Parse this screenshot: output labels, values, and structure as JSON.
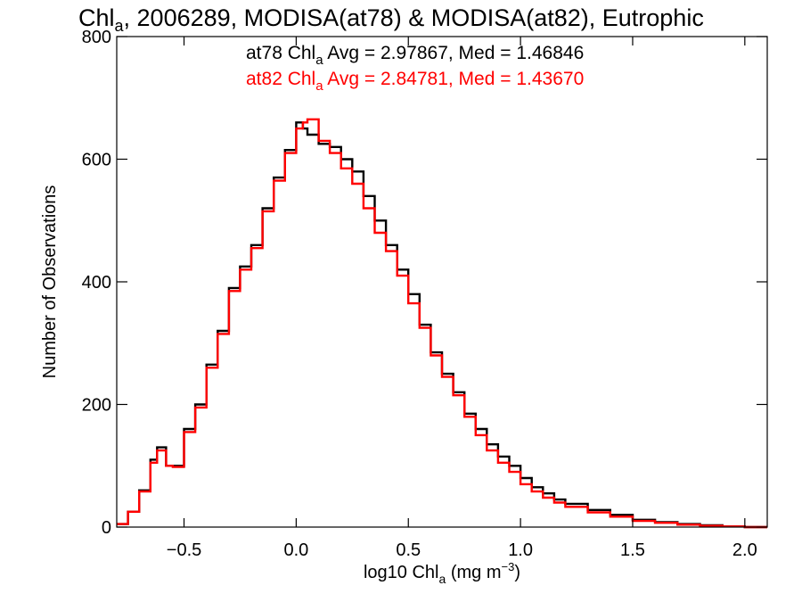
{
  "chart_data": {
    "type": "line",
    "title": {
      "prefix": "Chl",
      "sub": "a",
      "rest": ", 2006289, MODISA(at78) & MODISA(at82), Eutrophic"
    },
    "xlabel": {
      "prefix": "log10 Chl",
      "sub": "a",
      "mid": " (mg m",
      "sup": "−3",
      "suffix": ")"
    },
    "ylabel": "Number of Observations",
    "xlim": [
      -0.8,
      2.1
    ],
    "ylim": [
      0,
      800
    ],
    "xticks": [
      {
        "value": -0.5,
        "label": "−0.5"
      },
      {
        "value": 0.0,
        "label": "0.0"
      },
      {
        "value": 0.5,
        "label": "0.5"
      },
      {
        "value": 1.0,
        "label": "1.0"
      },
      {
        "value": 1.5,
        "label": "1.5"
      },
      {
        "value": 2.0,
        "label": "2.0"
      }
    ],
    "yticks": [
      {
        "value": 0,
        "label": "0"
      },
      {
        "value": 200,
        "label": "200"
      },
      {
        "value": 400,
        "label": "400"
      },
      {
        "value": 600,
        "label": "600"
      },
      {
        "value": 800,
        "label": "800"
      }
    ],
    "annotations": [
      {
        "prefix": "at78 Chl",
        "sub": "a",
        "rest": " Avg = 2.97867, Med = 1.46846",
        "color": "#000000"
      },
      {
        "prefix": "at82 Chl",
        "sub": "a",
        "rest": " Avg = 2.84781, Med = 1.43670",
        "color": "#ff0000"
      }
    ],
    "series": [
      {
        "color": "#000000",
        "x": [
          -0.8,
          -0.75,
          -0.7,
          -0.65,
          -0.62,
          -0.58,
          -0.55,
          -0.5,
          -0.45,
          -0.4,
          -0.35,
          -0.3,
          -0.25,
          -0.2,
          -0.15,
          -0.1,
          -0.05,
          0.0,
          0.03,
          0.05,
          0.1,
          0.15,
          0.2,
          0.25,
          0.3,
          0.35,
          0.4,
          0.45,
          0.5,
          0.55,
          0.6,
          0.65,
          0.7,
          0.75,
          0.8,
          0.85,
          0.9,
          0.95,
          1.0,
          1.05,
          1.1,
          1.15,
          1.2,
          1.3,
          1.4,
          1.5,
          1.6,
          1.7,
          1.8,
          1.9,
          2.0,
          2.1
        ],
        "y": [
          5,
          25,
          60,
          110,
          130,
          100,
          100,
          160,
          200,
          265,
          320,
          390,
          425,
          460,
          520,
          570,
          615,
          660,
          650,
          640,
          625,
          620,
          600,
          580,
          540,
          500,
          460,
          420,
          380,
          330,
          285,
          250,
          220,
          185,
          160,
          135,
          115,
          100,
          80,
          65,
          55,
          45,
          38,
          28,
          20,
          12,
          8,
          5,
          3,
          1,
          0,
          0
        ]
      },
      {
        "color": "#ff0000",
        "x": [
          -0.8,
          -0.75,
          -0.7,
          -0.65,
          -0.62,
          -0.58,
          -0.55,
          -0.5,
          -0.45,
          -0.4,
          -0.35,
          -0.3,
          -0.25,
          -0.2,
          -0.15,
          -0.1,
          -0.05,
          0.0,
          0.03,
          0.05,
          0.1,
          0.15,
          0.2,
          0.25,
          0.3,
          0.35,
          0.4,
          0.45,
          0.5,
          0.55,
          0.6,
          0.65,
          0.7,
          0.75,
          0.8,
          0.85,
          0.9,
          0.95,
          1.0,
          1.05,
          1.1,
          1.15,
          1.2,
          1.3,
          1.4,
          1.5,
          1.6,
          1.7,
          1.8,
          1.9,
          2.0,
          2.1
        ],
        "y": [
          5,
          25,
          58,
          105,
          125,
          100,
          98,
          155,
          195,
          260,
          315,
          385,
          420,
          455,
          515,
          565,
          610,
          650,
          660,
          665,
          630,
          610,
          585,
          560,
          520,
          480,
          450,
          410,
          365,
          325,
          280,
          245,
          215,
          180,
          150,
          125,
          105,
          90,
          70,
          58,
          48,
          40,
          33,
          24,
          17,
          10,
          7,
          4,
          2,
          1,
          0,
          0
        ]
      }
    ],
    "grid": false
  }
}
